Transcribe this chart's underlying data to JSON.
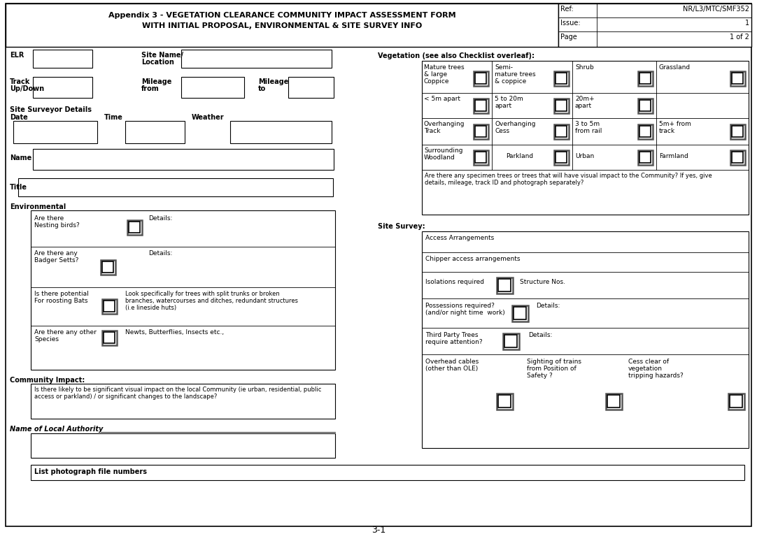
{
  "title_line1": "Appendix 3 - VEGETATION CLEARANCE COMMUNITY IMPACT ASSESSMENT FORM",
  "title_line2": "WITH INITIAL PROPOSAL, ENVIRONMENTAL & SITE SURVEY INFO",
  "ref_label": "Ref:",
  "ref_value": "NR/L3/MTC/SMF352",
  "issue_label": "Issue:",
  "issue_value": "1",
  "page_label": "Page",
  "page_value": "1 of 2",
  "page_number": "3-1",
  "bg_color": "#ffffff"
}
